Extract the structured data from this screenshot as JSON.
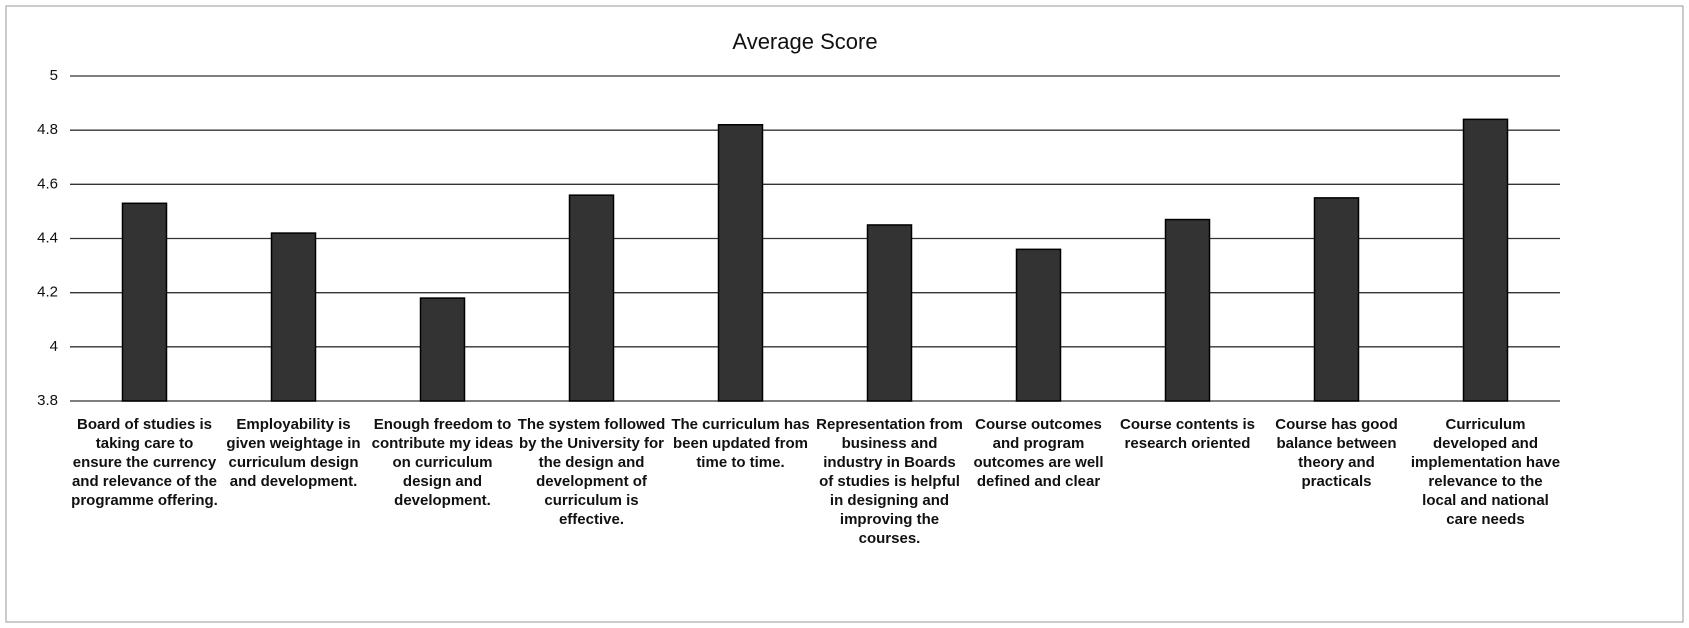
{
  "chart_data": {
    "type": "bar",
    "title": "Average Score",
    "categories": [
      "Board of studies is taking care to ensure the currency and relevance of the programme offering.",
      "Employability is given weightage in curriculum design and development.",
      "Enough freedom to contribute my ideas on curriculum design and development.",
      "The system followed by the University for the design and development of curriculum is effective.",
      "The curriculum has been updated from time to time.",
      "Representation from business and industry in Boards of studies is helpful in designing and improving the courses.",
      "Course outcomes and program outcomes are well defined and clear",
      "Course contents is research oriented",
      "Course has good balance between theory and practicals",
      "Curriculum developed and implementation have relevance to the local and national care needs"
    ],
    "values": [
      4.53,
      4.42,
      4.18,
      4.56,
      4.82,
      4.45,
      4.36,
      4.47,
      4.55,
      4.84
    ],
    "color": "#333333",
    "ylim": [
      3.8,
      5
    ],
    "yticks": [
      3.8,
      4,
      4.2,
      4.4,
      4.6,
      4.8,
      5
    ],
    "grid": true
  }
}
